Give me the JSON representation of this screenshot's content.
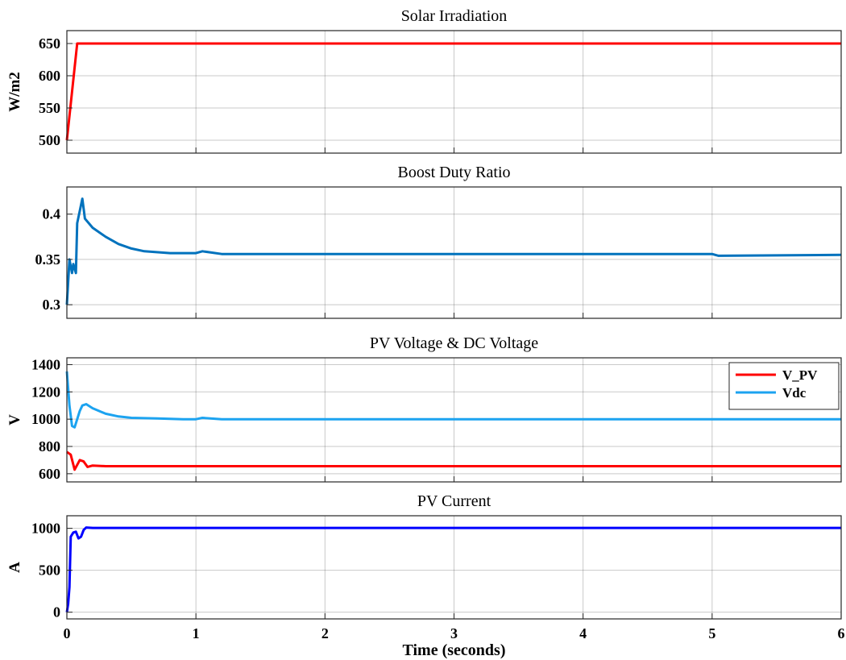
{
  "chart_data": [
    {
      "type": "line",
      "title": "Solar Irradiation",
      "ylabel": "W/m2",
      "xlim": [
        0,
        6
      ],
      "ylim": [
        480,
        670
      ],
      "yticks": [
        500,
        550,
        600,
        650
      ],
      "grid": true,
      "series": [
        {
          "color": "#ff0000",
          "x": [
            0,
            0.08,
            6
          ],
          "y": [
            500,
            650,
            650
          ]
        }
      ]
    },
    {
      "type": "line",
      "title": "Boost Duty Ratio",
      "ylabel": "",
      "xlim": [
        0,
        6
      ],
      "ylim": [
        0.285,
        0.43
      ],
      "yticks": [
        0.3,
        0.35,
        0.4
      ],
      "ytick_labels": [
        "0.3",
        "0.35",
        "0.4"
      ],
      "grid": true,
      "series": [
        {
          "color": "#0072bd",
          "x": [
            0,
            0.02,
            0.04,
            0.05,
            0.07,
            0.08,
            0.12,
            0.14,
            0.2,
            0.3,
            0.4,
            0.5,
            0.6,
            0.8,
            1.0,
            1.05,
            1.2,
            1.5,
            2.0,
            3.0,
            4.0,
            5.0,
            5.05,
            6.0
          ],
          "y": [
            0.3,
            0.35,
            0.335,
            0.345,
            0.335,
            0.39,
            0.417,
            0.395,
            0.385,
            0.375,
            0.367,
            0.362,
            0.359,
            0.357,
            0.357,
            0.359,
            0.356,
            0.356,
            0.356,
            0.356,
            0.356,
            0.356,
            0.354,
            0.355
          ]
        }
      ]
    },
    {
      "type": "line",
      "title": "PV Voltage & DC Voltage",
      "ylabel": "V",
      "xlim": [
        0,
        6
      ],
      "ylim": [
        540,
        1450
      ],
      "yticks": [
        600,
        800,
        1000,
        1200,
        1400
      ],
      "grid": true,
      "legend": "top-right",
      "series": [
        {
          "name": "V_PV",
          "color": "#ff0000",
          "x": [
            0,
            0.03,
            0.06,
            0.1,
            0.13,
            0.16,
            0.2,
            0.3,
            1,
            2,
            3,
            4,
            5,
            6
          ],
          "y": [
            760,
            740,
            630,
            700,
            690,
            650,
            660,
            655,
            655,
            655,
            655,
            655,
            655,
            655
          ]
        },
        {
          "name": "Vdc",
          "color": "#1ca3f0",
          "x": [
            0,
            0.02,
            0.04,
            0.06,
            0.08,
            0.1,
            0.12,
            0.15,
            0.2,
            0.3,
            0.4,
            0.5,
            0.7,
            0.9,
            1.0,
            1.05,
            1.2,
            1.5,
            2,
            3,
            4,
            5,
            6
          ],
          "y": [
            1350,
            1100,
            950,
            940,
            1000,
            1060,
            1100,
            1110,
            1080,
            1040,
            1020,
            1010,
            1005,
            1000,
            1000,
            1010,
            1000,
            1000,
            1000,
            1000,
            1000,
            1000,
            1000
          ]
        }
      ]
    },
    {
      "type": "line",
      "title": "PV Current",
      "ylabel": "A",
      "xlim": [
        0,
        6
      ],
      "ylim": [
        -80,
        1150
      ],
      "yticks": [
        0,
        500,
        1000
      ],
      "xticks": [
        0,
        1,
        2,
        3,
        4,
        5,
        6
      ],
      "xlabel": "Time (seconds)",
      "grid": true,
      "series": [
        {
          "color": "#0000ff",
          "x": [
            0,
            0.01,
            0.02,
            0.03,
            0.05,
            0.07,
            0.09,
            0.11,
            0.13,
            0.15,
            0.2,
            0.5,
            1,
            2,
            3,
            4,
            5,
            6
          ],
          "y": [
            0,
            100,
            300,
            900,
            950,
            960,
            880,
            900,
            980,
            1010,
            1005,
            1005,
            1005,
            1005,
            1005,
            1005,
            1005,
            1005
          ]
        }
      ]
    }
  ]
}
